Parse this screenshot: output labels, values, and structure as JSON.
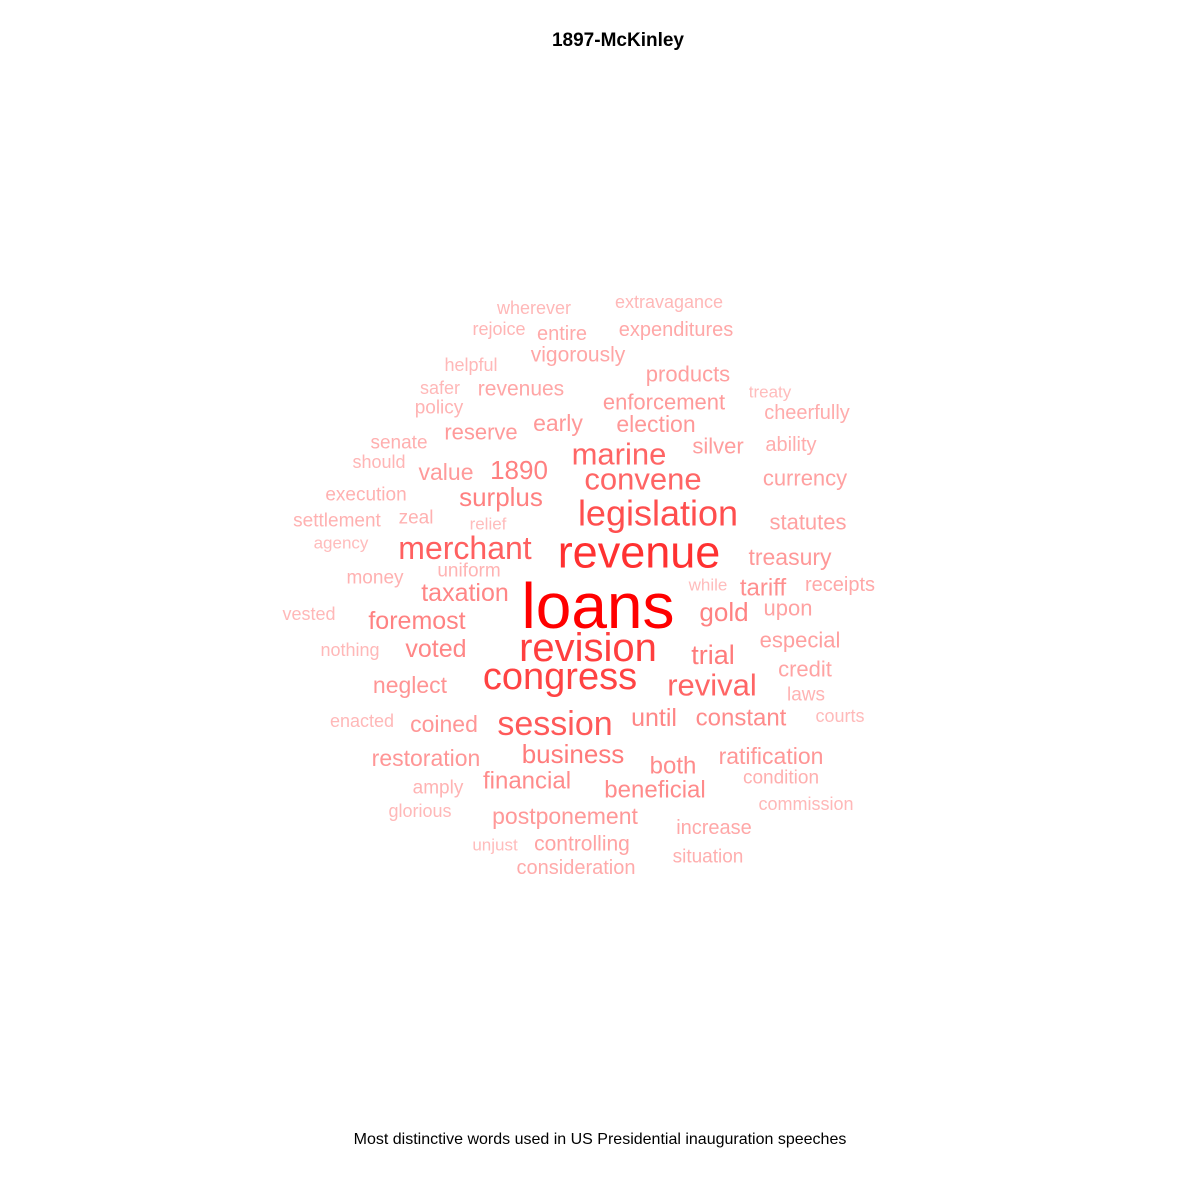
{
  "chart_data": {
    "type": "wordcloud",
    "title": "1897-McKinley",
    "caption": "Most distinctive words used in US Presidential inauguration speeches",
    "color_scale": {
      "low": "#ffbcbc",
      "high": "#ff0000"
    },
    "words": [
      {
        "word": "loans",
        "weight": 1.0
      },
      {
        "word": "revenue",
        "weight": 0.78
      },
      {
        "word": "revision",
        "weight": 0.72
      },
      {
        "word": "congress",
        "weight": 0.7
      },
      {
        "word": "legislation",
        "weight": 0.65
      },
      {
        "word": "session",
        "weight": 0.6
      },
      {
        "word": "merchant",
        "weight": 0.57
      },
      {
        "word": "convene",
        "weight": 0.55
      },
      {
        "word": "marine",
        "weight": 0.55
      },
      {
        "word": "revival",
        "weight": 0.55
      },
      {
        "word": "business",
        "weight": 0.45
      },
      {
        "word": "trial",
        "weight": 0.45
      },
      {
        "word": "surplus",
        "weight": 0.43
      },
      {
        "word": "1890",
        "weight": 0.43
      },
      {
        "word": "foremost",
        "weight": 0.42
      },
      {
        "word": "gold",
        "weight": 0.42
      },
      {
        "word": "taxation",
        "weight": 0.4
      },
      {
        "word": "voted",
        "weight": 0.4
      },
      {
        "word": "until",
        "weight": 0.4
      },
      {
        "word": "constant",
        "weight": 0.38
      },
      {
        "word": "financial",
        "weight": 0.38
      },
      {
        "word": "both",
        "weight": 0.38
      },
      {
        "word": "beneficial",
        "weight": 0.38
      },
      {
        "word": "tariff",
        "weight": 0.36
      },
      {
        "word": "neglect",
        "weight": 0.34
      },
      {
        "word": "coined",
        "weight": 0.33
      },
      {
        "word": "restoration",
        "weight": 0.33
      },
      {
        "word": "ratification",
        "weight": 0.33
      },
      {
        "word": "postponement",
        "weight": 0.32
      },
      {
        "word": "treasury",
        "weight": 0.32
      },
      {
        "word": "election",
        "weight": 0.32
      },
      {
        "word": "early",
        "weight": 0.32
      },
      {
        "word": "value",
        "weight": 0.31
      },
      {
        "word": "reserve",
        "weight": 0.31
      },
      {
        "word": "enforcement",
        "weight": 0.31
      },
      {
        "word": "silver",
        "weight": 0.3
      },
      {
        "word": "especial",
        "weight": 0.29
      },
      {
        "word": "products",
        "weight": 0.29
      },
      {
        "word": "currency",
        "weight": 0.28
      },
      {
        "word": "statutes",
        "weight": 0.28
      },
      {
        "word": "upon",
        "weight": 0.28
      },
      {
        "word": "credit",
        "weight": 0.27
      },
      {
        "word": "controlling",
        "weight": 0.27
      },
      {
        "word": "revenues",
        "weight": 0.26
      },
      {
        "word": "vigorously",
        "weight": 0.26
      },
      {
        "word": "expenditures",
        "weight": 0.25
      },
      {
        "word": "receipts",
        "weight": 0.25
      },
      {
        "word": "increase",
        "weight": 0.25
      },
      {
        "word": "consideration",
        "weight": 0.24
      },
      {
        "word": "entire",
        "weight": 0.24
      },
      {
        "word": "ability",
        "weight": 0.23
      },
      {
        "word": "cheerfully",
        "weight": 0.23
      },
      {
        "word": "situation",
        "weight": 0.22
      },
      {
        "word": "condition",
        "weight": 0.22
      },
      {
        "word": "senate",
        "weight": 0.22
      },
      {
        "word": "money",
        "weight": 0.21
      },
      {
        "word": "execution",
        "weight": 0.21
      },
      {
        "word": "settlement",
        "weight": 0.21
      },
      {
        "word": "zeal",
        "weight": 0.21
      },
      {
        "word": "policy",
        "weight": 0.2
      },
      {
        "word": "uniform",
        "weight": 0.2
      },
      {
        "word": "laws",
        "weight": 0.2
      },
      {
        "word": "amply",
        "weight": 0.2
      },
      {
        "word": "rejoice",
        "weight": 0.19
      },
      {
        "word": "should",
        "weight": 0.19
      },
      {
        "word": "wherever",
        "weight": 0.18
      },
      {
        "word": "extravagance",
        "weight": 0.18
      },
      {
        "word": "helpful",
        "weight": 0.18
      },
      {
        "word": "safer",
        "weight": 0.18
      },
      {
        "word": "vested",
        "weight": 0.18
      },
      {
        "word": "nothing",
        "weight": 0.18
      },
      {
        "word": "enacted",
        "weight": 0.18
      },
      {
        "word": "glorious",
        "weight": 0.18
      },
      {
        "word": "commission",
        "weight": 0.18
      },
      {
        "word": "courts",
        "weight": 0.17
      },
      {
        "word": "agency",
        "weight": 0.16
      },
      {
        "word": "relief",
        "weight": 0.16
      },
      {
        "word": "while",
        "weight": 0.16
      },
      {
        "word": "treaty",
        "weight": 0.16
      },
      {
        "word": "unjust",
        "weight": 0.16
      }
    ]
  }
}
